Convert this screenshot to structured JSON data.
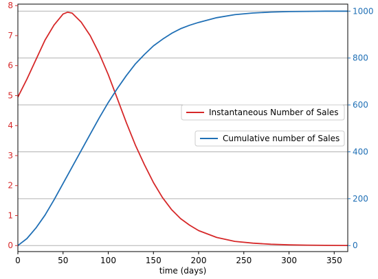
{
  "colors": {
    "left_axis": "#d62728",
    "right_axis": "#1f6fb5",
    "grid": "#b0b0b0",
    "axes": "#000000"
  },
  "chart_data": {
    "type": "line",
    "xlabel": "time (days)",
    "xlim": [
      0,
      365
    ],
    "xticks": [
      0,
      50,
      100,
      150,
      200,
      250,
      300,
      350
    ],
    "left_axis": {
      "ylim": [
        -0.2,
        8.05
      ],
      "ticks": [
        0,
        1,
        2,
        3,
        4,
        5,
        6,
        7,
        8
      ],
      "color": "#d62728"
    },
    "right_axis": {
      "ylim": [
        -25.6,
        1030
      ],
      "ticks": [
        0,
        200,
        400,
        600,
        800,
        1000
      ],
      "color": "#1f6fb5"
    },
    "grid": "horizontal lines at right-axis ticks",
    "series": [
      {
        "name": "Instantaneous Number of Sales",
        "axis": "left",
        "color": "#d62728",
        "x": [
          0,
          10,
          20,
          30,
          40,
          50,
          55,
          60,
          70,
          80,
          90,
          100,
          110,
          120,
          130,
          140,
          150,
          160,
          170,
          180,
          190,
          200,
          220,
          240,
          260,
          280,
          300,
          320,
          340,
          365
        ],
        "y": [
          4.95,
          5.55,
          6.2,
          6.85,
          7.35,
          7.72,
          7.78,
          7.75,
          7.45,
          7.0,
          6.4,
          5.7,
          4.9,
          4.1,
          3.35,
          2.7,
          2.1,
          1.6,
          1.2,
          0.9,
          0.68,
          0.5,
          0.27,
          0.14,
          0.08,
          0.045,
          0.025,
          0.015,
          0.008,
          0.003
        ]
      },
      {
        "name": "Cumulative number of Sales",
        "axis": "right",
        "color": "#1f6fb5",
        "x": [
          0,
          10,
          20,
          30,
          40,
          50,
          60,
          70,
          80,
          90,
          100,
          110,
          120,
          130,
          140,
          150,
          160,
          170,
          180,
          190,
          200,
          220,
          240,
          260,
          280,
          300,
          320,
          340,
          365
        ],
        "y": [
          0,
          30,
          75,
          130,
          195,
          265,
          335,
          405,
          475,
          545,
          610,
          670,
          725,
          775,
          815,
          852,
          880,
          905,
          925,
          940,
          952,
          972,
          985,
          992,
          996,
          998,
          999,
          1000,
          1000
        ]
      }
    ],
    "legend": [
      "Instantaneous Number of Sales",
      "Cumulative number of Sales"
    ],
    "legend_placement": "center-right"
  }
}
